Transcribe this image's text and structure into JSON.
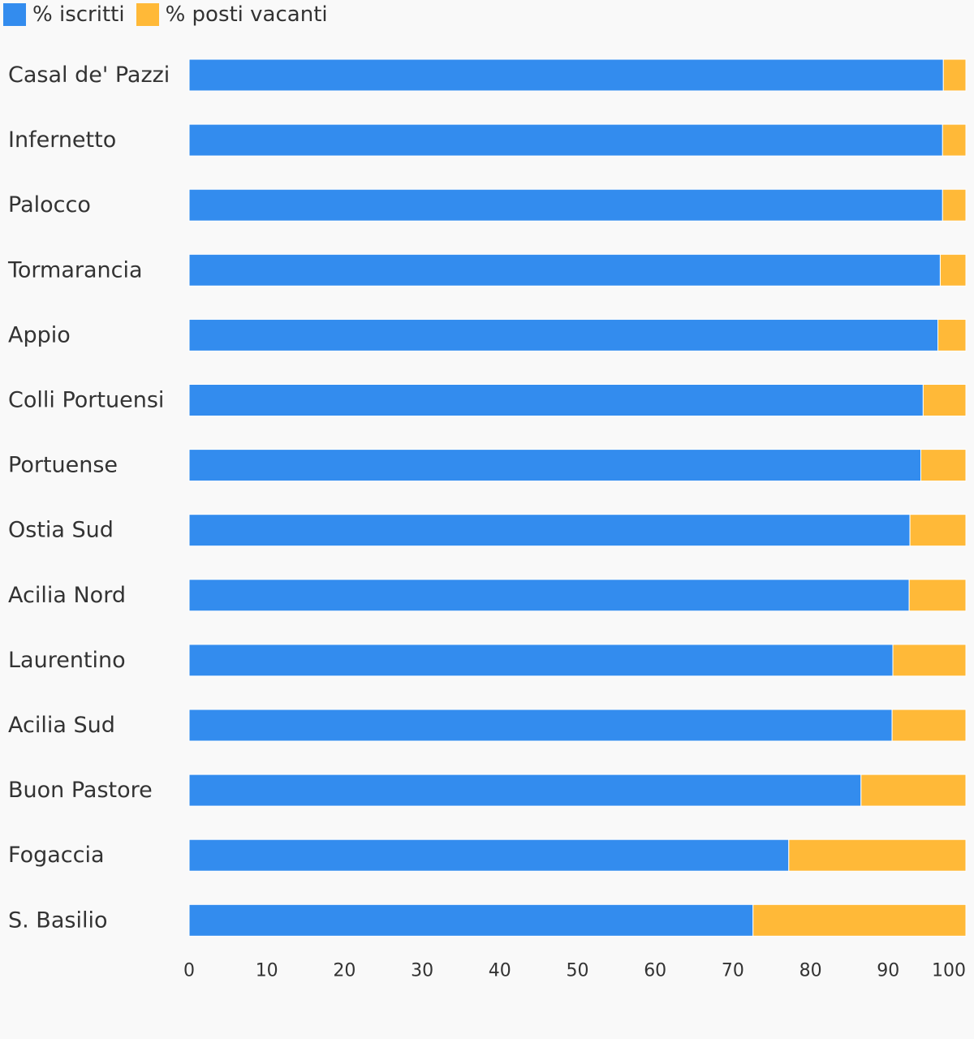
{
  "legend": {
    "items": [
      {
        "label": "% iscritti",
        "color": "#338cee"
      },
      {
        "label": "% posti vacanti",
        "color": "#ffb938"
      }
    ]
  },
  "chart_data": {
    "type": "bar",
    "orientation": "horizontal",
    "stacked": true,
    "title": "",
    "xlabel": "",
    "ylabel": "",
    "xlim": [
      0,
      100
    ],
    "xticks": [
      0,
      10,
      20,
      30,
      40,
      50,
      60,
      70,
      80,
      90,
      100
    ],
    "grid": false,
    "legend_position": "top-left",
    "categories": [
      "Casal de' Pazzi",
      "Infernetto",
      "Palocco",
      "Tormarancia",
      "Appio",
      "Colli Portuensi",
      "Portuense",
      "Ostia Sud",
      "Acilia Nord",
      "Laurentino",
      "Acilia Sud",
      "Buon Pastore",
      "Fogaccia",
      "S. Basilio"
    ],
    "series": [
      {
        "name": "% iscritti",
        "color": "#338cee",
        "values": [
          97.1,
          97.0,
          97.0,
          96.7,
          96.4,
          94.5,
          94.2,
          92.8,
          92.7,
          90.6,
          90.5,
          86.5,
          77.2,
          72.6
        ]
      },
      {
        "name": "% posti vacanti",
        "color": "#ffb938",
        "values": [
          2.9,
          3.0,
          3.0,
          3.3,
          3.6,
          5.5,
          5.8,
          7.2,
          7.3,
          9.4,
          9.5,
          13.5,
          22.8,
          27.4
        ]
      }
    ]
  }
}
